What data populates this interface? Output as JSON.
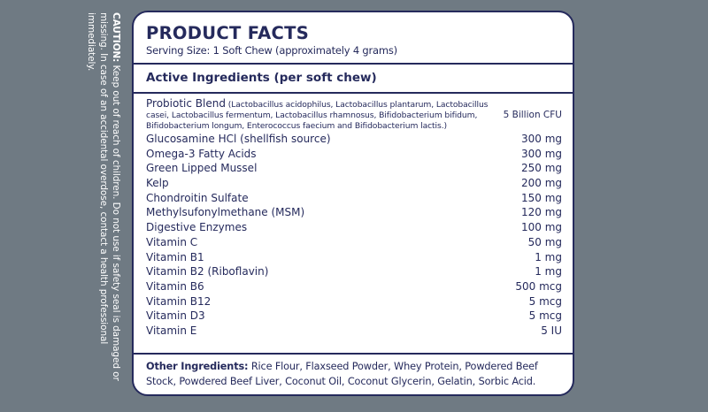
{
  "caution": {
    "label": "CAUTION:",
    "text": " Keep out of reach of children. Do not use if safety seal is damaged or missing. In case of an accidental overdose, contact a health professional immediately."
  },
  "header": {
    "title": "PRODUCT FACTS",
    "serving": "Serving Size: 1 Soft Chew (approximately 4 grams)"
  },
  "active_heading": "Active Ingredients (per soft chew)",
  "probiotic": {
    "name": "Probiotic Blend",
    "detail": " (Lactobacillus acidophilus, Lactobacillus plantarum, Lactobacillus casei, Lactobacillus fermentum, Lactobacillus rhamnosus, Bifidobacterium bifidum, Bifidobacterium longum, Enterococcus faecium and Bifidobacterium lactis.)",
    "amount": "5 Billion CFU"
  },
  "ingredients": [
    {
      "name": "Glucosamine HCl (shellfish source)",
      "amount": "300 mg"
    },
    {
      "name": "Omega-3 Fatty Acids",
      "amount": "300 mg"
    },
    {
      "name": "Green Lipped Mussel",
      "amount": "250 mg"
    },
    {
      "name": "Kelp",
      "amount": "200 mg"
    },
    {
      "name": "Chondroitin Sulfate",
      "amount": "150 mg"
    },
    {
      "name": "Methylsufonylmethane (MSM)",
      "amount": "120 mg"
    },
    {
      "name": "Digestive Enzymes",
      "amount": "100 mg"
    },
    {
      "name": "Vitamin C",
      "amount": "50 mg"
    },
    {
      "name": "Vitamin B1",
      "amount": "1 mg"
    },
    {
      "name": "Vitamin B2 (Riboflavin)",
      "amount": "1 mg"
    },
    {
      "name": "Vitamin B6",
      "amount": "500 mcg"
    },
    {
      "name": "Vitamin B12",
      "amount": "5 mcg"
    },
    {
      "name": "Vitamin D3",
      "amount": "5 mcg"
    },
    {
      "name": "Vitamin E",
      "amount": "5 IU"
    }
  ],
  "other": {
    "label": "Other Ingredients:",
    "text": " Rice Flour, Flaxseed Powder, Whey Protein, Powdered Beef Stock, Powdered Beef Liver, Coconut Oil, Coconut Glycerin, Gelatin, Sorbic Acid."
  },
  "colors": {
    "navy": "#252a5c",
    "background": "#6f7a83"
  }
}
